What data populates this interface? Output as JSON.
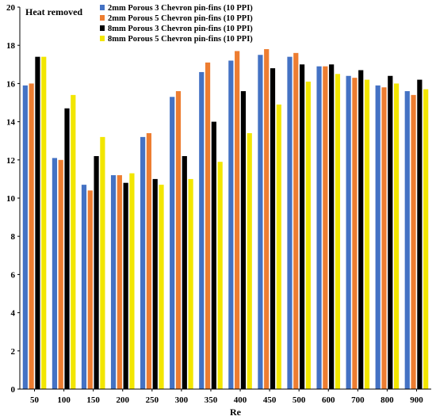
{
  "chart_data": {
    "type": "bar",
    "title": "Heat removed",
    "xlabel": "Re",
    "ylabel": "",
    "ylim": [
      0,
      20
    ],
    "yticks": [
      0,
      2,
      4,
      6,
      8,
      10,
      12,
      14,
      16,
      18,
      20
    ],
    "categories": [
      "50",
      "100",
      "150",
      "200",
      "250",
      "300",
      "350",
      "400",
      "450",
      "500",
      "600",
      "700",
      "800",
      "900"
    ],
    "legend_position": "top",
    "grid": false,
    "series": [
      {
        "name": "2mm Porous 3 Chevron pin-fins (10 PPI)",
        "color": "#4472C4",
        "values": [
          15.9,
          12.1,
          10.7,
          11.2,
          13.2,
          15.3,
          16.6,
          17.2,
          17.5,
          17.4,
          16.9,
          16.4,
          15.9,
          15.6
        ]
      },
      {
        "name": "2mm Porous 5 Chevron pin-fins (10 PPI)",
        "color": "#ED7D31",
        "values": [
          16.0,
          12.0,
          10.4,
          11.2,
          13.4,
          15.6,
          17.1,
          17.7,
          17.8,
          17.6,
          16.9,
          16.3,
          15.8,
          15.4
        ]
      },
      {
        "name": "8mm Porous 3 Chevron pin-fins (10 PPI)",
        "color": "#000000",
        "values": [
          17.4,
          14.7,
          12.2,
          10.8,
          11.0,
          12.2,
          14.0,
          15.6,
          16.8,
          17.0,
          17.0,
          16.7,
          16.4,
          16.2
        ]
      },
      {
        "name": "8mm Porous 5 Chevron pin-fins (10 PPI)",
        "color": "#F2E600",
        "values": [
          17.4,
          15.4,
          13.2,
          11.3,
          10.7,
          11.0,
          11.9,
          13.4,
          14.9,
          16.1,
          16.5,
          16.2,
          16.0,
          15.7
        ]
      }
    ]
  }
}
